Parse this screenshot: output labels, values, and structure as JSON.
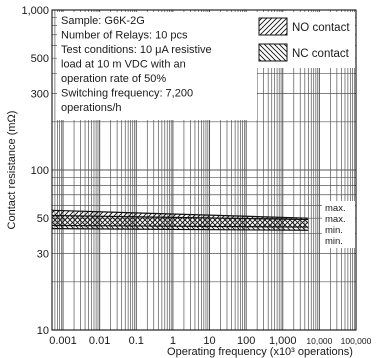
{
  "chart_data": {
    "type": "line",
    "xlabel": "Operating frequency (x10³ operations)",
    "ylabel": "Contact resistance (mΩ)",
    "x_scale": "log",
    "y_scale": "log",
    "xlim": [
      0.0005,
      100000
    ],
    "ylim": [
      10,
      1000
    ],
    "y_ticks": [
      {
        "value": 10,
        "label": "10"
      },
      {
        "value": 30,
        "label": "30"
      },
      {
        "value": 50,
        "label": "50"
      },
      {
        "value": 100,
        "label": "100"
      },
      {
        "value": 300,
        "label": "300"
      },
      {
        "value": 500,
        "label": "500"
      },
      {
        "value": 1000,
        "label": "1,000"
      }
    ],
    "x_ticks": [
      {
        "value": 0.001,
        "label": "0.001",
        "small": false
      },
      {
        "value": 0.01,
        "label": "0.01",
        "small": false
      },
      {
        "value": 0.1,
        "label": "0.1",
        "small": false
      },
      {
        "value": 1,
        "label": "1",
        "small": false
      },
      {
        "value": 10,
        "label": "10",
        "small": false
      },
      {
        "value": 100,
        "label": "100",
        "small": false
      },
      {
        "value": 1000,
        "label": "1,000",
        "small": false
      },
      {
        "value": 10000,
        "label": "10,000",
        "small": true
      },
      {
        "value": 100000,
        "label": "100,000",
        "small": true
      }
    ],
    "series": [
      {
        "name": "NO contact",
        "hatch": "forward",
        "x_range": [
          0.0005,
          5000
        ],
        "max": [
          56,
          50
        ],
        "min": [
          45,
          44
        ]
      },
      {
        "name": "NC contact",
        "hatch": "backward",
        "x_range": [
          0.0005,
          5000
        ],
        "max": [
          52,
          49
        ],
        "min": [
          43,
          42
        ]
      }
    ],
    "annotations": {
      "note_lines": [
        "Sample: G6K-2G",
        "Number of Relays: 10 pcs",
        "Test conditions: 10 μA resistive",
        "load at 10 m VDC with an",
        "operation rate of 50%",
        "Switching frequency: 7,200",
        "operations/h"
      ],
      "end_labels": [
        "max.",
        "max.",
        "min.",
        "min."
      ]
    },
    "legend_position": "top-right",
    "grid": true
  }
}
